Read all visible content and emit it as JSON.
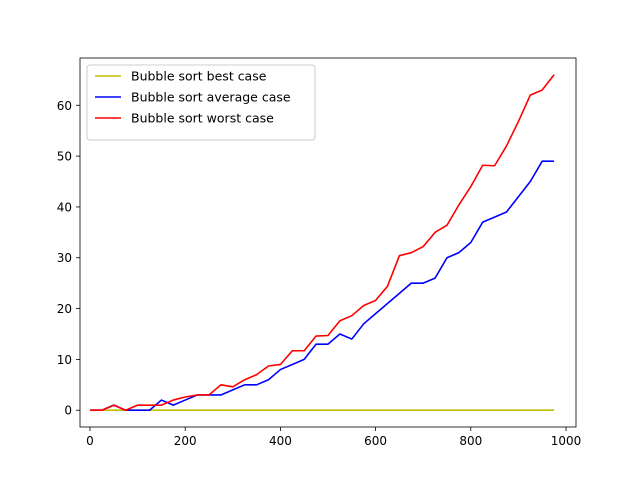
{
  "chart_data": {
    "type": "line",
    "title": "",
    "xlabel": "",
    "ylabel": "",
    "xlim": [
      -21,
      1021
    ],
    "ylim": [
      -3.3,
      69.3
    ],
    "xticks": [
      0,
      200,
      400,
      600,
      800,
      1000
    ],
    "yticks": [
      0,
      10,
      20,
      30,
      40,
      50,
      60
    ],
    "grid": false,
    "legend_position": "top-left",
    "x": [
      0,
      25,
      50,
      75,
      100,
      125,
      150,
      175,
      200,
      225,
      250,
      275,
      300,
      325,
      350,
      375,
      400,
      425,
      450,
      475,
      500,
      525,
      550,
      575,
      600,
      625,
      650,
      675,
      700,
      725,
      750,
      775,
      800,
      825,
      850,
      875,
      900,
      925,
      950,
      975
    ],
    "series": [
      {
        "name": "Bubble sort best case",
        "color": "#bfbf00",
        "values": [
          0,
          0,
          0,
          0,
          0,
          0,
          0,
          0,
          0,
          0,
          0,
          0,
          0,
          0,
          0,
          0,
          0,
          0,
          0,
          0,
          0,
          0,
          0,
          0,
          0,
          0,
          0,
          0,
          0,
          0,
          0,
          0,
          0,
          0,
          0,
          0,
          0,
          0,
          0,
          0
        ]
      },
      {
        "name": "Bubble sort average case",
        "color": "#0000ff",
        "values": [
          0,
          0,
          1,
          0,
          0,
          0,
          2,
          1,
          2,
          3,
          3,
          3,
          4,
          5,
          5,
          6,
          8,
          9,
          10,
          13,
          13,
          15,
          14,
          17,
          19,
          21,
          23,
          25,
          25,
          26,
          30,
          31,
          33,
          37,
          38,
          39,
          42,
          45,
          49,
          49
        ]
      },
      {
        "name": "Bubble sort worst case",
        "color": "#ff0000",
        "values": [
          0,
          0,
          1,
          0,
          1,
          1,
          1,
          2,
          2.6,
          3,
          3,
          5,
          4.6,
          6,
          7,
          8.7,
          9,
          11.7,
          11.7,
          14.6,
          14.7,
          17.6,
          18.6,
          20.6,
          21.6,
          24.4,
          30.4,
          31,
          32.2,
          35,
          36.4,
          40.4,
          44,
          48.2,
          48.1,
          52,
          56.8,
          62,
          63,
          66
        ]
      }
    ]
  }
}
